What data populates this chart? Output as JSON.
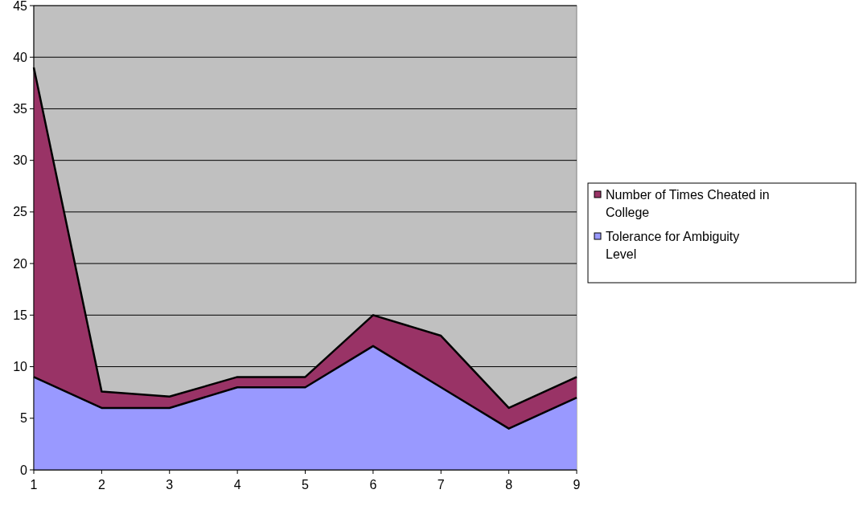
{
  "chart_data": {
    "type": "area",
    "stacked": true,
    "x": [
      1,
      2,
      3,
      4,
      5,
      6,
      7,
      8,
      9
    ],
    "series": [
      {
        "name": "Tolerance for Ambiguity Level",
        "color": "#9999ff",
        "values": [
          9,
          6,
          6,
          8,
          8,
          12,
          8,
          4,
          7
        ]
      },
      {
        "name": "Number of Times Cheated in College",
        "color": "#993366",
        "values": [
          30,
          1.6,
          1.1,
          1,
          1,
          3,
          5,
          2,
          2
        ]
      }
    ],
    "xlim": [
      1,
      9
    ],
    "xticks": [
      1,
      2,
      3,
      4,
      5,
      6,
      7,
      8,
      9
    ],
    "ylim": [
      0,
      45
    ],
    "yticks": [
      0,
      5,
      10,
      15,
      20,
      25,
      30,
      35,
      40,
      45
    ],
    "grid": "y",
    "legend": "right"
  }
}
